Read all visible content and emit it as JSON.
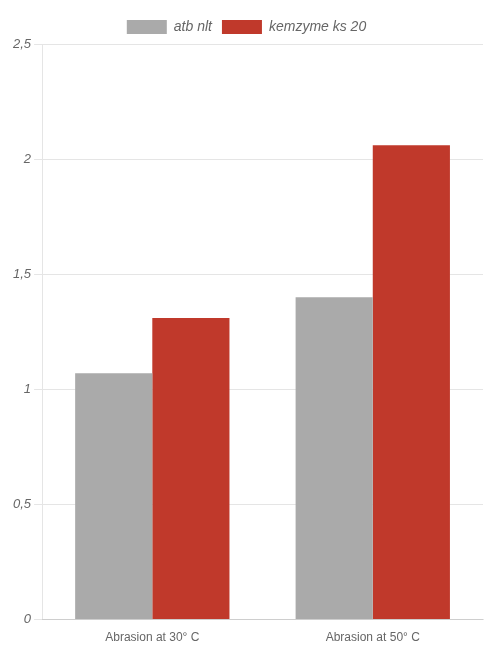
{
  "chart_data": {
    "type": "bar",
    "categories": [
      "Abrasion at 30° C",
      "Abrasion at 50° C"
    ],
    "series": [
      {
        "name": "atb nlt",
        "color": "#aaaaaa",
        "values": [
          1.07,
          1.4
        ]
      },
      {
        "name": "kemzyme ks 20",
        "color": "#c0392b",
        "values": [
          1.31,
          2.06
        ]
      }
    ],
    "ylim": [
      0,
      2.5
    ],
    "yticks": [
      0,
      {
        "value": 0.5,
        "label": "0,5"
      },
      1,
      {
        "value": 1.5,
        "label": "1,5"
      },
      2,
      {
        "value": 2.5,
        "label": "2,5"
      }
    ],
    "grid": true,
    "legend": "top"
  }
}
